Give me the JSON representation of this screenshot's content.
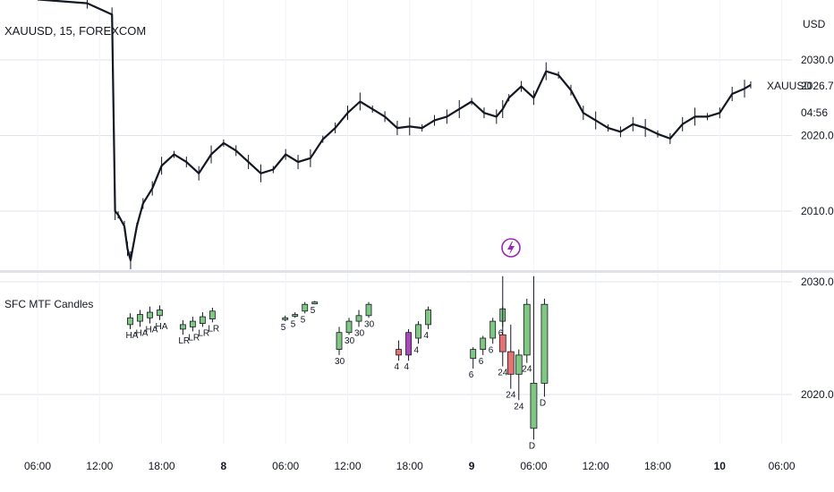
{
  "main_pane": {
    "symbol": "XAUUSD, 15, FOREXCOM",
    "currency": "USD",
    "last_price": "2026.71",
    "price_tag_symbol": "XAUUSD",
    "countdown": "04:56",
    "y_ticks": [
      "2030.00",
      "2020.00",
      "2010.00"
    ],
    "event_icon": "lightning-bolt-icon",
    "event_color": "#9c27b0"
  },
  "indicator_pane": {
    "title": "SFC MTF Candles",
    "y_ticks": [
      "2030.00",
      "2020.00"
    ]
  },
  "time_axis": {
    "labels": [
      "06:00",
      "12:00",
      "18:00",
      "8",
      "06:00",
      "12:00",
      "18:00",
      "9",
      "06:00",
      "12:00",
      "18:00",
      "10",
      "06:00"
    ],
    "bold_labels": [
      "8",
      "9",
      "10"
    ]
  },
  "colors": {
    "bull": "#81c784",
    "bear": "#e57373",
    "highlight": "#ab47bc",
    "price_line": "#131722",
    "grid": "#e0e3eb"
  },
  "chart_data": [
    {
      "type": "line",
      "title": "XAUUSD, 15, FOREXCOM",
      "ylabel": "USD",
      "ylim": [
        2003,
        2038
      ],
      "x": [
        "06:00",
        "12:00",
        "18:00",
        "8",
        "06:00",
        "12:00",
        "18:00",
        "9",
        "06:00",
        "12:00",
        "18:00",
        "10",
        "06:00"
      ],
      "series": [
        {
          "name": "XAUUSD",
          "points": [
            [
              0,
              2038
            ],
            [
              0.8,
              2037.5
            ],
            [
              1.2,
              2036
            ],
            [
              1.25,
              2010
            ],
            [
              1.3,
              2009.5
            ],
            [
              1.4,
              2008
            ],
            [
              1.45,
              2005
            ],
            [
              1.5,
              2003.5
            ],
            [
              1.6,
              2008
            ],
            [
              1.7,
              2011
            ],
            [
              1.85,
              2013
            ],
            [
              2.0,
              2016
            ],
            [
              2.2,
              2017.5
            ],
            [
              2.4,
              2016.5
            ],
            [
              2.6,
              2015
            ],
            [
              2.8,
              2017.5
            ],
            [
              3.0,
              2019
            ],
            [
              3.2,
              2018
            ],
            [
              3.4,
              2016.5
            ],
            [
              3.6,
              2015
            ],
            [
              3.8,
              2015.5
            ],
            [
              4.0,
              2017.5
            ],
            [
              4.2,
              2016.5
            ],
            [
              4.4,
              2017
            ],
            [
              4.6,
              2019.5
            ],
            [
              4.8,
              2021
            ],
            [
              5.0,
              2023
            ],
            [
              5.2,
              2024.5
            ],
            [
              5.4,
              2023.5
            ],
            [
              5.6,
              2022.5
            ],
            [
              5.8,
              2021
            ],
            [
              6.0,
              2021.2
            ],
            [
              6.2,
              2021
            ],
            [
              6.4,
              2022
            ],
            [
              6.6,
              2022.5
            ],
            [
              6.8,
              2023.5
            ],
            [
              7.0,
              2024.5
            ],
            [
              7.2,
              2023
            ],
            [
              7.4,
              2022.5
            ],
            [
              7.5,
              2023.5
            ],
            [
              7.6,
              2025
            ],
            [
              7.8,
              2026.5
            ],
            [
              8.0,
              2025
            ],
            [
              8.2,
              2028.5
            ],
            [
              8.4,
              2028
            ],
            [
              8.6,
              2026
            ],
            [
              8.8,
              2023
            ],
            [
              9.0,
              2022
            ],
            [
              9.2,
              2021
            ],
            [
              9.4,
              2020.5
            ],
            [
              9.6,
              2021.5
            ],
            [
              9.8,
              2021
            ],
            [
              10.0,
              2020.2
            ],
            [
              10.2,
              2019.6
            ],
            [
              10.4,
              2021.5
            ],
            [
              10.6,
              2022.5
            ],
            [
              10.8,
              2022.5
            ],
            [
              11.0,
              2023
            ],
            [
              11.2,
              2025.5
            ],
            [
              11.4,
              2026.2
            ],
            [
              11.5,
              2026.7
            ]
          ]
        }
      ]
    },
    {
      "type": "bar",
      "title": "SFC MTF Candles",
      "ylim": [
        2015,
        2032
      ],
      "candles": [
        {
          "o": 2026.2,
          "h": 2027.2,
          "l": 2025.8,
          "c": 2026.8
        },
        {
          "o": 2026.5,
          "h": 2027.5,
          "l": 2026.0,
          "c": 2027.1
        },
        {
          "o": 2026.8,
          "h": 2027.8,
          "l": 2026.3,
          "c": 2027.3
        },
        {
          "o": 2027.0,
          "h": 2027.9,
          "l": 2026.6,
          "c": 2027.5
        },
        {
          "o": 2025.8,
          "h": 2026.6,
          "l": 2025.3,
          "c": 2026.2
        },
        {
          "o": 2026.0,
          "h": 2026.9,
          "l": 2025.6,
          "c": 2026.5
        },
        {
          "o": 2026.3,
          "h": 2027.3,
          "l": 2026.0,
          "c": 2026.9
        },
        {
          "o": 2026.7,
          "h": 2027.7,
          "l": 2026.4,
          "c": 2027.4
        },
        {
          "o": 2026.7,
          "h": 2027.0,
          "l": 2026.5,
          "c": 2026.8
        },
        {
          "o": 2027.0,
          "h": 2027.3,
          "l": 2026.8,
          "c": 2027.1
        },
        {
          "o": 2027.4,
          "h": 2028.2,
          "l": 2027.2,
          "c": 2028.0
        },
        {
          "o": 2028.1,
          "h": 2028.3,
          "l": 2028.0,
          "c": 2028.2
        },
        {
          "o": 2024.0,
          "h": 2026.0,
          "l": 2023.5,
          "c": 2025.5
        },
        {
          "o": 2025.5,
          "h": 2026.8,
          "l": 2025.3,
          "c": 2026.5
        },
        {
          "o": 2026.5,
          "h": 2027.5,
          "l": 2026.0,
          "c": 2027.0
        },
        {
          "o": 2027.0,
          "h": 2028.2,
          "l": 2026.8,
          "c": 2028.0
        },
        {
          "o": 2024.0,
          "h": 2024.8,
          "l": 2023.0,
          "c": 2023.5
        },
        {
          "o": 2023.5,
          "h": 2025.8,
          "l": 2023.0,
          "c": 2025.5
        },
        {
          "o": 2025.0,
          "h": 2026.5,
          "l": 2024.5,
          "c": 2026.2
        },
        {
          "o": 2026.2,
          "h": 2027.8,
          "l": 2025.8,
          "c": 2027.5
        },
        {
          "o": 2023.2,
          "h": 2024.2,
          "l": 2022.3,
          "c": 2024.0
        },
        {
          "o": 2024.0,
          "h": 2025.2,
          "l": 2023.5,
          "c": 2025.0
        },
        {
          "o": 2025.0,
          "h": 2026.8,
          "l": 2024.5,
          "c": 2026.5
        },
        {
          "o": 2026.5,
          "h": 2027.8,
          "l": 2026.0,
          "c": 2027.6
        },
        {
          "o": 2025.3,
          "h": 2030.5,
          "l": 2022.5,
          "c": 2023.8
        },
        {
          "o": 2023.8,
          "h": 2026.2,
          "l": 2020.5,
          "c": 2021.8
        },
        {
          "o": 2021.8,
          "h": 2024.0,
          "l": 2019.5,
          "c": 2023.5
        },
        {
          "o": 2023.5,
          "h": 2028.5,
          "l": 2022.8,
          "c": 2028.0
        },
        {
          "o": 2017.0,
          "h": 2030.5,
          "l": 2016.0,
          "c": 2021.0
        },
        {
          "o": 2021.0,
          "h": 2028.5,
          "l": 2019.8,
          "c": 2028.0
        }
      ],
      "candle_colors": [
        "bull",
        "bull",
        "bull",
        "bull",
        "bull",
        "bull",
        "bull",
        "bull",
        "bull",
        "bull",
        "bull",
        "bull",
        "bull",
        "bull",
        "bull",
        "bull",
        "bear",
        "highlight",
        "bull",
        "bull",
        "bull",
        "bull",
        "bull",
        "bull",
        "bear",
        "bear",
        "bull",
        "bull",
        "bull",
        "bull"
      ],
      "labels": [
        "HA",
        "HA",
        "HA",
        "HA",
        "LR",
        "LR",
        "LR",
        "LR",
        "5",
        "5",
        "5",
        "5",
        "30",
        "30",
        "30",
        "30",
        "4",
        "4",
        "4",
        "4",
        "6",
        "6",
        "6",
        "6",
        "24",
        "24",
        "24",
        "24",
        "D",
        "D"
      ]
    }
  ]
}
